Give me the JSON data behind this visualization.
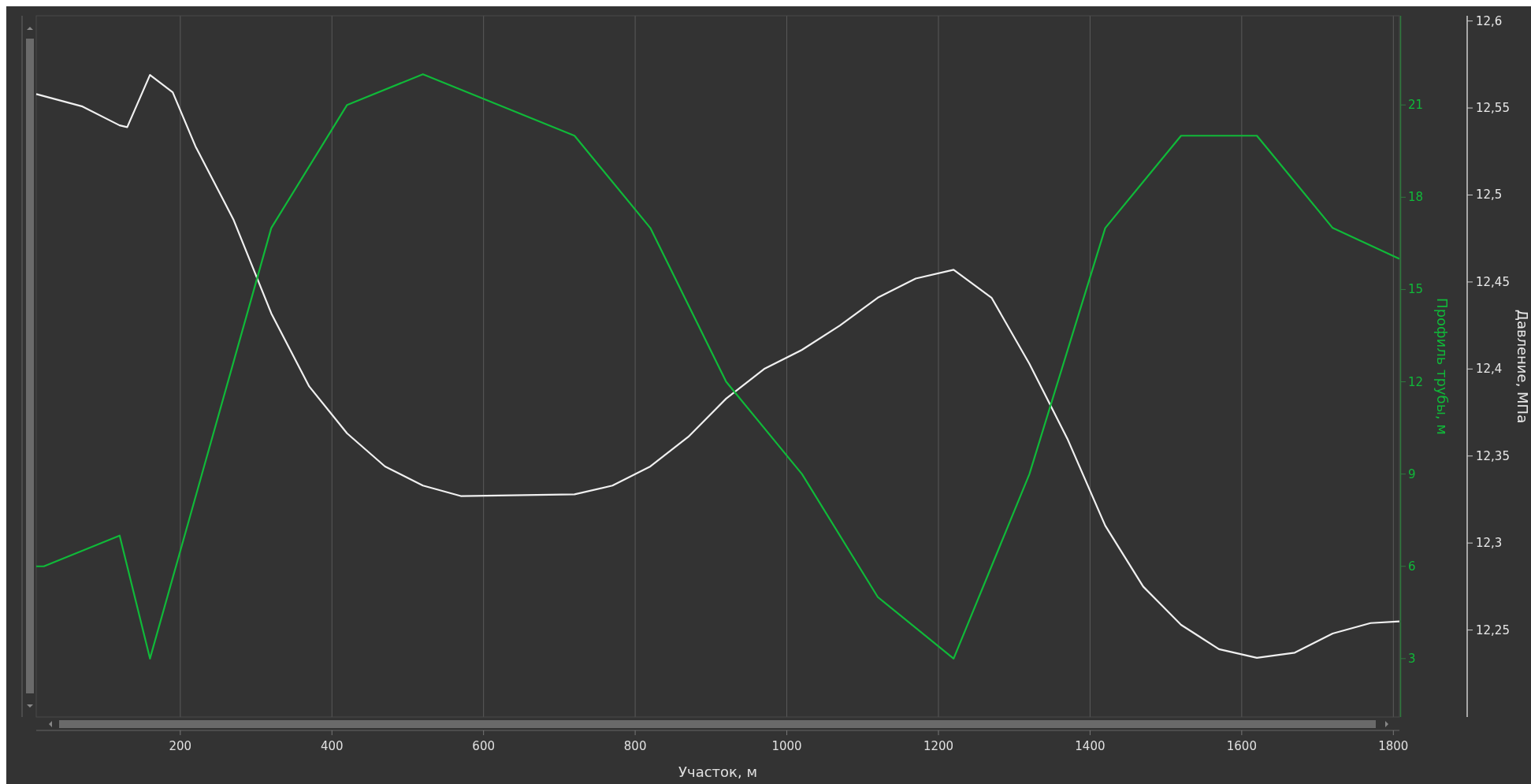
{
  "chart_data": {
    "type": "line",
    "xlabel": "Участок, м",
    "y2label": "Профиль трубы, м",
    "y3label": "Давление, МПа",
    "xlim": [
      10,
      1808
    ],
    "xticks": [
      200,
      400,
      600,
      800,
      1000,
      1200,
      1400,
      1600,
      1800
    ],
    "y2lim": [
      1.1,
      23.9
    ],
    "y2ticks": [
      3,
      6,
      9,
      12,
      15,
      18,
      21
    ],
    "y3lim": [
      12.2,
      12.603
    ],
    "y3ticks": [
      {
        "value": 12.25,
        "label": "12,25"
      },
      {
        "value": 12.3,
        "label": "12,3"
      },
      {
        "value": 12.35,
        "label": "12,35"
      },
      {
        "value": 12.4,
        "label": "12,4"
      },
      {
        "value": 12.45,
        "label": "12,45"
      },
      {
        "value": 12.5,
        "label": "12,5"
      },
      {
        "value": 12.55,
        "label": "12,55"
      },
      {
        "value": 12.6,
        "label": "12,6"
      }
    ],
    "grid": "x",
    "series": [
      {
        "axis": "y3",
        "color": "#f0f0f0",
        "x": [
          10,
          70,
          120,
          130,
          160,
          190,
          220,
          270,
          320,
          370,
          420,
          470,
          520,
          570,
          720,
          770,
          820,
          870,
          920,
          970,
          1020,
          1070,
          1120,
          1170,
          1220,
          1270,
          1320,
          1370,
          1420,
          1470,
          1520,
          1570,
          1620,
          1670,
          1720,
          1770,
          1808
        ],
        "values": [
          12.558,
          12.551,
          12.54,
          12.539,
          12.569,
          12.559,
          12.528,
          12.486,
          12.432,
          12.39,
          12.363,
          12.344,
          12.333,
          12.327,
          12.328,
          12.333,
          12.344,
          12.361,
          12.383,
          12.4,
          12.411,
          12.425,
          12.441,
          12.452,
          12.457,
          12.441,
          12.403,
          12.36,
          12.31,
          12.275,
          12.253,
          12.239,
          12.234,
          12.237,
          12.248,
          12.254,
          12.255
        ]
      },
      {
        "axis": "y2",
        "color": "#10b939",
        "x": [
          10,
          20,
          120,
          160,
          320,
          420,
          520,
          720,
          820,
          920,
          1020,
          1120,
          1220,
          1320,
          1420,
          1520,
          1620,
          1720,
          1808
        ],
        "values": [
          6,
          6,
          7,
          3,
          17,
          21,
          22,
          20,
          17,
          12,
          9,
          5,
          3,
          9,
          17,
          20,
          20,
          17,
          16
        ]
      }
    ]
  }
}
